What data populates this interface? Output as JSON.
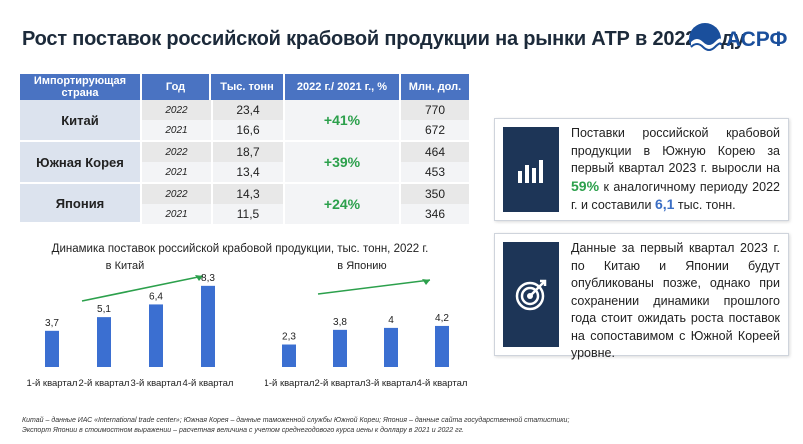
{
  "title": "Рост поставок российской крабовой продукции на рынки АТР в 2022 году",
  "logo": {
    "text": "АСРФ",
    "color": "#1a4f9c"
  },
  "table": {
    "headers": [
      "Импортирующая страна",
      "Год",
      "Тыс. тонн",
      "2022 г./ 2021 г., %",
      "Млн. дол."
    ],
    "groups": [
      {
        "country": "Китай",
        "change": "+41%",
        "rows": [
          {
            "year": "2022",
            "tons": "23,4",
            "usd": "770"
          },
          {
            "year": "2021",
            "tons": "16,6",
            "usd": "672"
          }
        ]
      },
      {
        "country": "Южная Корея",
        "change": "+39%",
        "rows": [
          {
            "year": "2022",
            "tons": "18,7",
            "usd": "464"
          },
          {
            "year": "2021",
            "tons": "13,4",
            "usd": "453"
          }
        ]
      },
      {
        "country": "Япония",
        "change": "+24%",
        "rows": [
          {
            "year": "2022",
            "tons": "14,3",
            "usd": "350"
          },
          {
            "year": "2021",
            "tons": "11,5",
            "usd": "346"
          }
        ]
      }
    ]
  },
  "box1": {
    "icon": "bar-chart-icon",
    "pre": "Поставки российской крабовой продукции в Южную Корею за первый квартал 2023 г. выросли на ",
    "hl1": "59%",
    "mid": " к аналогичному периоду 2022 г. и составили ",
    "hl2": "6,1",
    "post": " тыс. тонн."
  },
  "box2": {
    "icon": "target-icon",
    "text": "Данные за первый квартал 2023 г. по Китаю и Японии будут опубликованы позже, однако при сохранении динамики прошлого года стоит ожидать роста поставок на сопоставимом с Южной Кореей уровне."
  },
  "charts_title": "Динамика поставок российской крабовой продукции, тыс. тонн, 2022 г.",
  "chart_data": [
    {
      "type": "bar",
      "title": "в Китай",
      "categories": [
        "1-й квартал",
        "2-й квартал",
        "3-й квартал",
        "4-й квартал"
      ],
      "values": [
        3.7,
        5.1,
        6.4,
        8.3
      ],
      "labels": [
        "3,7",
        "5,1",
        "6,4",
        "8,3"
      ],
      "color": "#3b6fd1",
      "ylim": [
        0,
        9
      ]
    },
    {
      "type": "bar",
      "title": "в Японию",
      "categories": [
        "1-й квартал",
        "2-й квартал",
        "3-й квартал",
        "4-й квартал"
      ],
      "values": [
        2.3,
        3.8,
        4.0,
        4.2
      ],
      "labels": [
        "2,3",
        "3,8",
        "4",
        "4,2"
      ],
      "color": "#3b6fd1",
      "ylim": [
        0,
        9
      ]
    }
  ],
  "footnote": {
    "line1": "Китай – данные ИАС «International trade center»; Южная Корея – данные таможенной службы Южной Кореи; Япония – данные сайта государственной статистики;",
    "line2": "Экспорт Японии в стоимостном выражении – расчетная величина с учетом среднегодового курса иены к доллару в 2021 и 2022 гг."
  }
}
